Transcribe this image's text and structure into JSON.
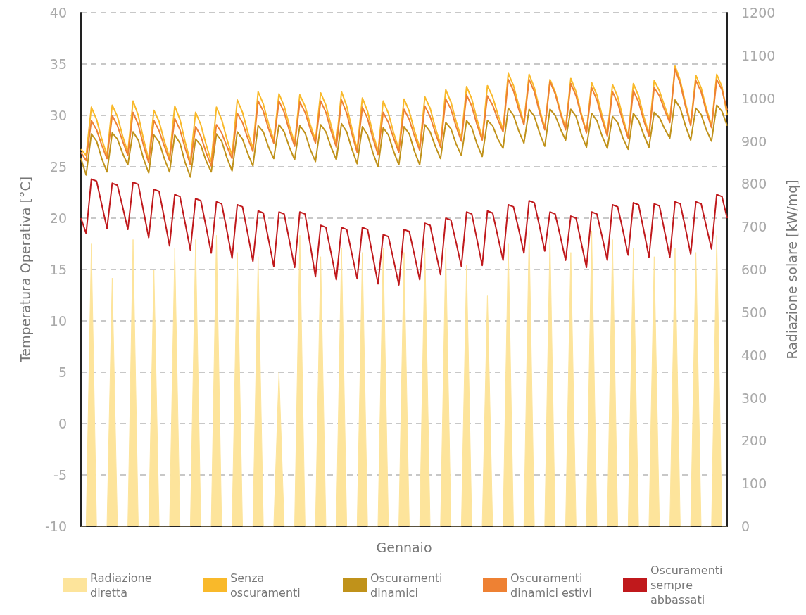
{
  "chart_data": {
    "type": "line",
    "xlabel": "Gennaio",
    "ylabel": "Temperatura Operativa [°C]",
    "y2label": "Radiazione solare [kW/mq]",
    "ylim": [
      -10,
      40
    ],
    "yticks": [
      -10,
      -5,
      0,
      5,
      10,
      15,
      20,
      25,
      30,
      35,
      40
    ],
    "y2lim": [
      0,
      1200
    ],
    "y2ticks": [
      0,
      100,
      200,
      300,
      400,
      500,
      600,
      700,
      800,
      900,
      1000,
      1100,
      1200
    ],
    "tick_labels": "y",
    "grid": "y",
    "legend": "bottom",
    "marker": "none",
    "line_style": "solid",
    "categories": [
      null,
      null,
      null,
      null,
      null,
      null,
      null,
      null,
      null,
      null,
      null,
      null,
      null,
      null,
      null,
      null,
      null,
      null,
      null,
      null,
      null,
      null,
      null,
      null,
      null,
      null,
      null,
      null,
      null,
      null,
      null,
      null,
      null,
      null,
      null,
      null,
      null,
      null,
      null,
      null,
      null,
      null,
      null,
      null,
      null,
      null,
      null,
      null,
      null,
      null,
      null,
      null,
      null,
      null,
      null,
      null,
      null,
      null,
      null,
      null,
      null,
      null,
      null,
      null,
      null,
      null,
      null,
      null,
      null,
      null,
      null,
      null,
      null,
      null,
      null,
      null,
      null,
      null,
      null,
      null,
      null,
      null,
      null,
      null,
      null,
      null,
      null,
      null,
      null,
      null,
      null,
      null,
      null,
      null,
      null,
      null,
      null,
      null,
      null,
      null,
      null,
      null,
      null,
      null,
      null,
      null,
      null,
      null,
      null,
      null,
      null,
      null,
      null,
      null,
      null,
      null,
      null,
      null,
      null,
      null,
      null,
      null,
      null,
      null,
      null
    ],
    "series": [
      {
        "name": "Radiazione diretta",
        "type": "area",
        "axis": "y2",
        "color": "#fde49b",
        "values": [
          0,
          0,
          660,
          0,
          0,
          0,
          580,
          0,
          0,
          0,
          670,
          0,
          0,
          0,
          600,
          0,
          0,
          0,
          650,
          0,
          0,
          0,
          670,
          0,
          0,
          0,
          680,
          0,
          0,
          0,
          640,
          0,
          0,
          0,
          630,
          0,
          0,
          0,
          360,
          0,
          0,
          0,
          680,
          0,
          0,
          0,
          630,
          0,
          0,
          0,
          650,
          0,
          0,
          0,
          640,
          0,
          0,
          0,
          650,
          0,
          0,
          0,
          640,
          0,
          0,
          0,
          650,
          0,
          0,
          0,
          650,
          0,
          0,
          0,
          610,
          0,
          0,
          0,
          540,
          0,
          0,
          0,
          660,
          0,
          0,
          0,
          690,
          0,
          0,
          0,
          680,
          0,
          0,
          0,
          640,
          0,
          0,
          0,
          690,
          0,
          0,
          0,
          670,
          0,
          0,
          0,
          650,
          0,
          0,
          0,
          630,
          0,
          0,
          0,
          650,
          0,
          0,
          0,
          640,
          0,
          0,
          0,
          680,
          0,
          0
        ]
      },
      {
        "name": "Senza oscuramenti",
        "color": "#f9b92a",
        "values": [
          26.7,
          26.1,
          30.8,
          29.6,
          27.7,
          26.1,
          31.0,
          29.9,
          28.0,
          26.4,
          31.4,
          30.0,
          27.7,
          25.7,
          30.5,
          29.4,
          27.5,
          25.9,
          30.9,
          29.6,
          27.4,
          25.5,
          30.3,
          29.1,
          27.2,
          25.5,
          30.8,
          29.6,
          27.7,
          26.1,
          31.5,
          30.3,
          28.4,
          26.8,
          32.3,
          31.1,
          29.2,
          27.6,
          32.1,
          30.9,
          29.0,
          27.3,
          32.0,
          30.9,
          29.1,
          27.6,
          32.2,
          31.0,
          29.0,
          27.2,
          32.3,
          30.9,
          28.7,
          26.7,
          31.7,
          30.4,
          28.3,
          26.5,
          31.4,
          30.2,
          28.3,
          26.7,
          31.6,
          30.4,
          28.5,
          26.9,
          31.8,
          30.7,
          28.8,
          27.2,
          32.5,
          31.3,
          29.4,
          27.8,
          32.8,
          31.6,
          29.6,
          27.8,
          32.9,
          31.8,
          30.1,
          28.6,
          34.1,
          32.9,
          31.0,
          29.3,
          34.0,
          32.7,
          30.6,
          28.8,
          33.5,
          32.3,
          30.4,
          28.8,
          33.6,
          32.3,
          30.2,
          28.4,
          33.2,
          32.0,
          30.0,
          28.2,
          33.0,
          31.8,
          29.8,
          28.0,
          33.1,
          31.9,
          29.9,
          28.2,
          33.4,
          32.4,
          30.9,
          29.5,
          34.8,
          33.4,
          31.2,
          29.2,
          33.9,
          32.7,
          30.7,
          29.0,
          34.0,
          32.8,
          30.0
        ]
      },
      {
        "name": "Oscuramenti dinamici",
        "color": "#c0921a",
        "values": [
          25.8,
          24.2,
          28.2,
          27.5,
          25.8,
          24.5,
          28.3,
          27.7,
          26.3,
          25.2,
          28.4,
          27.6,
          25.8,
          24.4,
          28.1,
          27.4,
          25.8,
          24.5,
          28.1,
          27.3,
          25.4,
          24.0,
          27.7,
          27.1,
          25.6,
          24.5,
          28.2,
          27.5,
          25.9,
          24.6,
          28.4,
          27.7,
          26.3,
          25.1,
          29.0,
          28.4,
          26.9,
          25.8,
          29.1,
          28.4,
          26.9,
          25.7,
          29.0,
          28.3,
          26.7,
          25.5,
          29.1,
          28.4,
          26.9,
          25.7,
          29.2,
          28.4,
          26.7,
          25.3,
          28.9,
          28.1,
          26.4,
          25.0,
          28.8,
          28.1,
          26.5,
          25.2,
          28.9,
          28.2,
          26.5,
          25.2,
          29.1,
          28.4,
          27.0,
          25.8,
          29.3,
          28.7,
          27.2,
          26.1,
          29.5,
          28.8,
          27.2,
          26.0,
          29.5,
          29.0,
          27.7,
          26.8,
          30.7,
          30.0,
          28.5,
          27.3,
          30.6,
          29.9,
          28.3,
          27.0,
          30.6,
          30.0,
          28.7,
          27.6,
          30.6,
          29.9,
          28.2,
          26.9,
          30.2,
          29.5,
          28.0,
          26.8,
          29.9,
          29.3,
          27.8,
          26.7,
          30.2,
          29.5,
          28.1,
          26.9,
          30.3,
          29.8,
          28.7,
          27.8,
          31.5,
          30.7,
          29.0,
          27.6,
          30.7,
          30.1,
          28.6,
          27.5,
          31.0,
          30.4,
          29.0
        ]
      },
      {
        "name": "Oscuramenti dinamici estivi",
        "color": "#ee8133",
        "values": [
          26.4,
          25.6,
          29.5,
          28.6,
          27.1,
          25.8,
          30.0,
          29.0,
          27.5,
          26.1,
          30.3,
          29.1,
          27.1,
          25.4,
          29.5,
          28.5,
          27.0,
          25.6,
          29.7,
          28.6,
          26.8,
          25.2,
          28.9,
          28.0,
          26.4,
          25.1,
          29.1,
          28.3,
          27.0,
          25.8,
          30.2,
          29.3,
          27.8,
          26.5,
          31.4,
          30.4,
          28.7,
          27.3,
          31.4,
          30.3,
          28.5,
          27.0,
          31.3,
          30.3,
          28.7,
          27.3,
          31.4,
          30.3,
          28.5,
          26.9,
          31.5,
          30.2,
          28.2,
          26.4,
          30.8,
          29.7,
          27.8,
          26.2,
          30.3,
          29.3,
          27.8,
          26.4,
          30.6,
          29.6,
          28.0,
          26.6,
          30.9,
          29.9,
          28.3,
          26.9,
          31.6,
          30.6,
          28.9,
          27.5,
          32.0,
          30.9,
          29.1,
          27.6,
          31.9,
          31.0,
          29.6,
          28.4,
          33.5,
          32.4,
          30.6,
          29.1,
          33.5,
          32.3,
          30.3,
          28.6,
          33.3,
          32.1,
          30.2,
          28.6,
          33.1,
          31.9,
          30.0,
          28.3,
          32.7,
          31.5,
          29.6,
          28.0,
          32.3,
          31.2,
          29.4,
          27.8,
          32.4,
          31.3,
          29.5,
          28.0,
          32.7,
          31.9,
          30.5,
          29.3,
          34.5,
          33.1,
          30.9,
          29.0,
          33.4,
          32.3,
          30.4,
          28.8,
          33.5,
          32.5,
          30.5
        ]
      },
      {
        "name": "Oscuramenti sempre abbassati",
        "color": "#c0191c",
        "values": [
          20.0,
          18.5,
          23.8,
          23.6,
          21.3,
          19.0,
          23.4,
          23.2,
          21.1,
          18.9,
          23.5,
          23.3,
          20.7,
          18.1,
          22.8,
          22.6,
          20.0,
          17.3,
          22.3,
          22.1,
          19.5,
          16.9,
          21.9,
          21.7,
          19.2,
          16.6,
          21.6,
          21.4,
          18.8,
          16.1,
          21.3,
          21.1,
          18.5,
          15.8,
          20.7,
          20.5,
          17.9,
          15.3,
          20.6,
          20.4,
          17.8,
          15.2,
          20.6,
          20.4,
          17.4,
          14.3,
          19.3,
          19.1,
          16.6,
          14.0,
          19.1,
          18.9,
          16.5,
          14.1,
          19.1,
          18.9,
          16.3,
          13.6,
          18.4,
          18.2,
          15.9,
          13.5,
          18.9,
          18.7,
          16.4,
          14.0,
          19.5,
          19.3,
          16.9,
          14.5,
          20.0,
          19.8,
          17.6,
          15.3,
          20.6,
          20.4,
          17.9,
          15.4,
          20.7,
          20.5,
          18.2,
          15.9,
          21.3,
          21.1,
          18.9,
          16.6,
          21.7,
          21.5,
          19.2,
          16.8,
          20.6,
          20.4,
          18.2,
          15.9,
          20.2,
          20.0,
          17.6,
          15.2,
          20.6,
          20.4,
          18.2,
          15.9,
          21.3,
          21.1,
          18.8,
          16.4,
          21.5,
          21.3,
          18.8,
          16.2,
          21.4,
          21.2,
          18.7,
          16.2,
          21.6,
          21.4,
          19.0,
          16.5,
          21.6,
          21.4,
          19.2,
          17.0,
          22.3,
          22.1,
          20.0
        ]
      }
    ]
  }
}
